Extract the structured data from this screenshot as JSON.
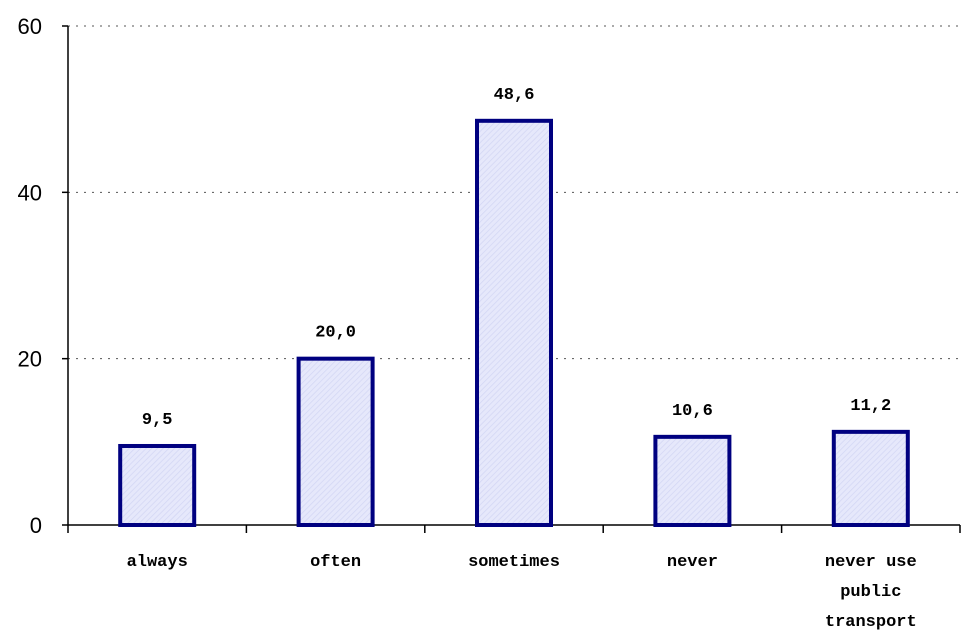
{
  "chart_data": {
    "type": "bar",
    "categories": [
      [
        "always"
      ],
      [
        "often"
      ],
      [
        "sometimes"
      ],
      [
        "never"
      ],
      [
        "never use",
        "public",
        "transport"
      ]
    ],
    "values": [
      9.5,
      20.0,
      48.6,
      10.6,
      11.2
    ],
    "value_labels": [
      "9,5",
      "20,0",
      "48,6",
      "10,6",
      "11,2"
    ],
    "ylim": [
      0,
      60
    ],
    "yticks": [
      0,
      20,
      40,
      60
    ],
    "grid": true,
    "colors": {
      "bar_fill": "#e6e8fb",
      "bar_hatch": "#d3d6f4",
      "bar_stroke": "#000080",
      "grid": "#555555"
    }
  }
}
